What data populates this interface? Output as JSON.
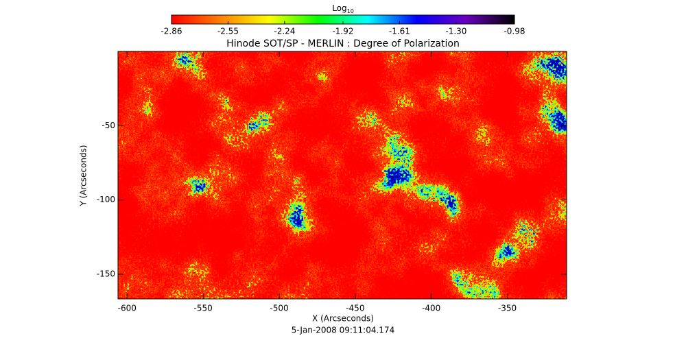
{
  "chart_data": {
    "type": "heatmap",
    "title": "Hinode SOT/SP - MERLIN : Degree of Polarization",
    "xlabel": "X (Arcseconds)",
    "ylabel": "Y (Arcseconds)",
    "footer": "5-Jan-2008 09:11:04.174",
    "xlim": [
      -606,
      -311
    ],
    "ylim": [
      -166.6,
      0
    ],
    "xticks": [
      -600,
      -550,
      -500,
      -450,
      -400,
      -350
    ],
    "yticks": [
      -150,
      -100,
      -50
    ],
    "colorbar": {
      "label": "Log",
      "label_subscript": "10",
      "clim": [
        -2.86,
        -0.98
      ],
      "ticks": [
        -2.86,
        -2.55,
        -2.24,
        -1.92,
        -1.61,
        {
          "value": -1.3,
          "label": "-1.30"
        },
        -0.98
      ],
      "colormap": [
        "#ff0000",
        "#ff8000",
        "#ffff00",
        "#00ff00",
        "#00ffff",
        "#0000ff",
        "#6a00c0",
        "#000000"
      ]
    }
  }
}
